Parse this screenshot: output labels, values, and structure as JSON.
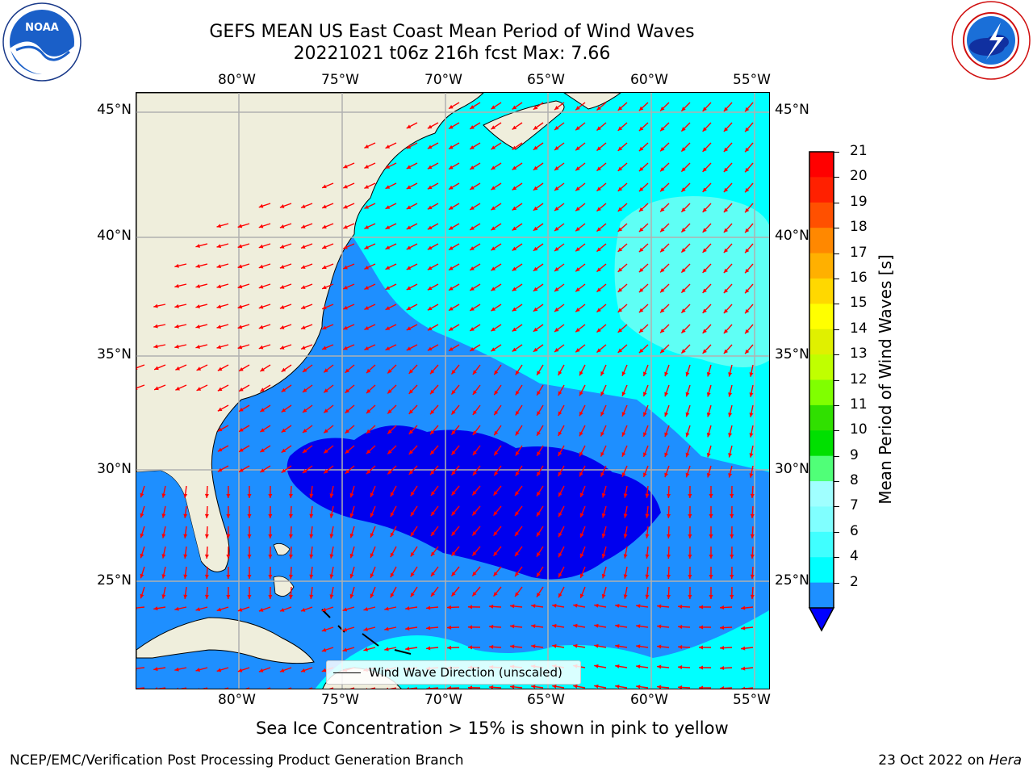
{
  "title_line1": "GEFS MEAN US East Coast Mean Period of Wind Waves",
  "title_line2": "20221021 t06z 216h fcst   Max: 7.66",
  "logos": {
    "noaa": {
      "icon": "noaa-logo",
      "text": "NOAA",
      "ring_text": "NATIONAL OCEANIC AND ATMOSPHERIC ADMINISTRATION · U.S. DEPARTMENT OF COMMERCE"
    },
    "nws": {
      "icon": "nws-logo",
      "ring_text": "NATIONAL WEATHER SERVICE"
    }
  },
  "axes": {
    "lon_labels": [
      "80°W",
      "75°W",
      "70°W",
      "65°W",
      "60°W",
      "55°W"
    ],
    "lat_labels": [
      "45°N",
      "40°N",
      "35°N",
      "30°N",
      "25°N"
    ],
    "gridline_color": "#b0b0b0",
    "grid": true
  },
  "colorbar": {
    "label": "Mean Period of Wind Waves [s]",
    "ticks": [
      "21",
      "20",
      "19",
      "18",
      "17",
      "16",
      "15",
      "14",
      "13",
      "12",
      "11",
      "10",
      "9",
      "8",
      "7",
      "6",
      "4",
      "2"
    ],
    "colors_bottom_to_top": [
      "#0000ff",
      "#1e90ff",
      "#00ffff",
      "#40ffff",
      "#80ffff",
      "#a0ffff",
      "#50ff78",
      "#00e000",
      "#30e000",
      "#80ff00",
      "#c0ff00",
      "#e0f000",
      "#ffff00",
      "#ffd800",
      "#ffb000",
      "#ff8800",
      "#ff5000",
      "#ff2000",
      "#ff0000"
    ],
    "extend": "min",
    "under_color": "#0000ff"
  },
  "legend": {
    "label": "Wind Wave Direction (unscaled)",
    "position": "lower-center"
  },
  "map": {
    "land_color": "#efeedc",
    "arrow_color": "#ff0000",
    "level_colors": {
      "lt2": "#0000ee",
      "2_4": "#1e8fff",
      "4_6": "#00ffff",
      "6_8": "#5ffff5"
    }
  },
  "note": "Sea Ice Concentration > 15% is shown in pink to yellow",
  "footer_left": "NCEP/EMC/Verification Post Processing Product Generation Branch",
  "footer_right_prefix": "23 Oct 2022 on ",
  "footer_right_host": "Hera"
}
